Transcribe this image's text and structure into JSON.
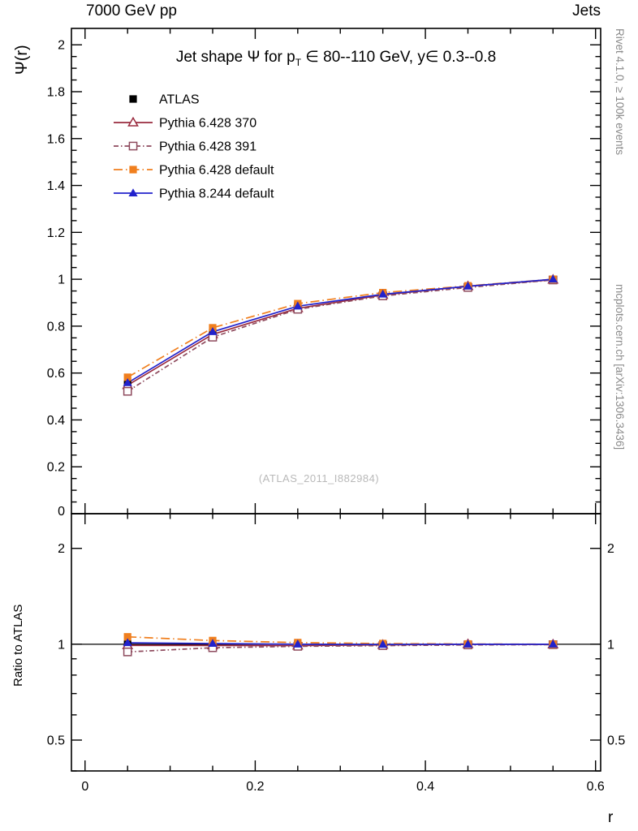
{
  "header": {
    "left": "7000 GeV pp",
    "right": "Jets"
  },
  "margin_right": {
    "top": "Rivet 4.1.0, ≥ 100k events",
    "bottom": "mcplots.cern.ch [arXiv:1306.3436]"
  },
  "watermark": "(ATLAS_2011_I882984)",
  "chart_data": {
    "type": "line",
    "title": "Jet shape Ψ for p_T ∈ 80--110 GeV, y∈ 0.3--0.8",
    "title_parts": [
      {
        "t": "Jet shape Ψ for p"
      },
      {
        "t": "T",
        "sub": true
      },
      {
        "t": " ∈ 80--110 GeV, y∈ 0.3--0.8"
      }
    ],
    "x_axis": {
      "label": "r",
      "xlim": [
        -0.016,
        0.606
      ],
      "ticks": [
        0,
        0.2,
        0.4,
        0.6
      ],
      "minor_step": 0.05
    },
    "main_axis": {
      "label": "Ψ(r)",
      "ylim": [
        0,
        2.07
      ],
      "ticks": [
        0,
        0.2,
        0.4,
        0.6,
        0.8,
        1,
        1.2,
        1.4,
        1.6,
        1.8,
        2
      ],
      "minor_step": 0.05
    },
    "ratio_axis": {
      "label": "Ratio to ATLAS",
      "scale": "log",
      "ylim": [
        0.4,
        2.57
      ],
      "ticks": [
        0.5,
        1,
        2
      ],
      "minor_ticks": [
        0.4,
        0.6,
        0.7,
        0.8,
        0.9
      ]
    },
    "grid": false,
    "legend_position": "top-left",
    "x": [
      0.05,
      0.15,
      0.25,
      0.35,
      0.45,
      0.55
    ],
    "series": [
      {
        "name": "ATLAS",
        "color": "#000000",
        "marker": "square-filled",
        "line": "none",
        "values": [
          0.552,
          0.772,
          0.885,
          0.938,
          0.97,
          1.0
        ],
        "errors": [
          0.012,
          0.008,
          0.006,
          0.005,
          0.004,
          0.003
        ],
        "ratio": [
          1,
          1,
          1,
          1,
          1,
          1
        ]
      },
      {
        "name": "Pythia 6.428 370",
        "color": "#9a2b3f",
        "marker": "triangle-open",
        "line": "solid",
        "values": [
          0.548,
          0.765,
          0.876,
          0.933,
          0.97,
          0.998
        ],
        "ratio": [
          0.992,
          0.991,
          0.99,
          0.995,
          1.0,
          0.998
        ]
      },
      {
        "name": "Pythia 6.428 391",
        "color": "#8e4a5d",
        "marker": "square-open",
        "line": "dashdot",
        "values": [
          0.522,
          0.753,
          0.872,
          0.929,
          0.965,
          0.997
        ],
        "ratio": [
          0.946,
          0.975,
          0.985,
          0.99,
          0.995,
          0.997
        ]
      },
      {
        "name": "Pythia 6.428 default",
        "color": "#f07f1e",
        "marker": "square-filled",
        "line": "dashdotlong",
        "values": [
          0.582,
          0.793,
          0.896,
          0.943,
          0.972,
          1.0
        ],
        "ratio": [
          1.055,
          1.027,
          1.012,
          1.005,
          1.002,
          1.0
        ]
      },
      {
        "name": "Pythia 8.244 default",
        "color": "#2222cc",
        "marker": "triangle-filled",
        "line": "solid",
        "values": [
          0.558,
          0.776,
          0.885,
          0.936,
          0.97,
          1.0
        ],
        "ratio": [
          1.01,
          1.005,
          1.0,
          0.998,
          1.0,
          1.0
        ]
      }
    ]
  }
}
